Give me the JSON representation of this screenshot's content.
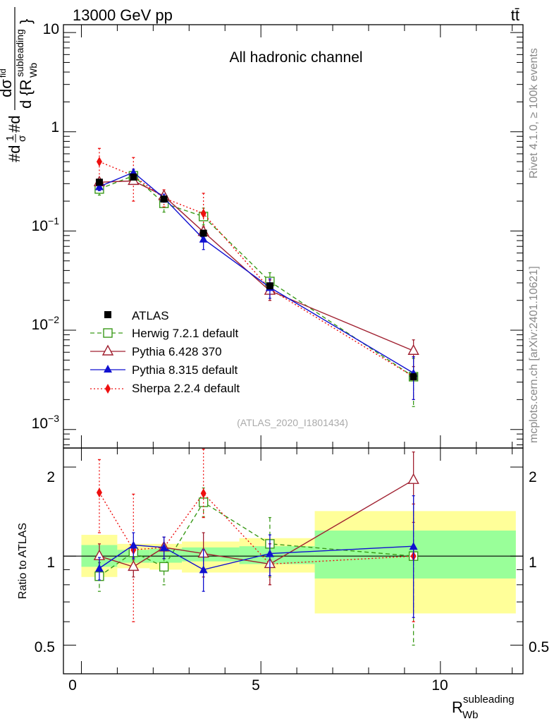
{
  "header": {
    "energy_label": "13000 GeV pp",
    "process_label": "tt̄"
  },
  "side_labels": {
    "rivet": "Rivet 4.1.0, ≥ 100k events",
    "site": "mcplots.cern.ch [arXiv:2401.10621]"
  },
  "chart_data": {
    "type": "line",
    "title": "All hadronic channel",
    "analysis_id": "(ATLAS_2020_I1801434)",
    "xlabel": "R_Wb^subleading",
    "xlabel_main": "R",
    "xlabel_sub": "Wb",
    "xlabel_sup": "subleading",
    "ylabel": "#d 1/σ #d dσ^fid / d{R_Wb^subleading}",
    "ratio_ylabel": "Ratio to ATLAS",
    "xlim": [
      -0.5,
      12.3
    ],
    "main_ylim": [
      0.00065,
      12
    ],
    "ratio_ylim": [
      0.4,
      2.32
    ],
    "x_ticks": [
      "0",
      "5",
      "10"
    ],
    "main_y_ticks": [
      "10",
      "1",
      "10^-1",
      "10^-2",
      "10^-3"
    ],
    "ratio_y_ticks": [
      "2",
      "1",
      "0.5"
    ],
    "bins": [
      [
        0,
        1
      ],
      [
        1,
        1.9
      ],
      [
        1.9,
        2.8
      ],
      [
        2.8,
        4.4
      ],
      [
        4.4,
        6.5
      ],
      [
        6.5,
        12.1
      ]
    ],
    "x": [
      0.5,
      1.45,
      2.3,
      3.4,
      5.25,
      9.25
    ],
    "data": {
      "name": "ATLAS",
      "values": [
        0.31,
        0.35,
        0.21,
        0.095,
        0.028,
        0.0034
      ],
      "band_inner": [
        [
          0.92,
          1.09
        ],
        [
          0.95,
          1.05
        ],
        [
          0.95,
          1.06
        ],
        [
          0.96,
          1.07
        ],
        [
          0.94,
          1.08
        ],
        [
          0.84,
          1.22
        ]
      ],
      "band_outer": [
        [
          0.85,
          1.18
        ],
        [
          0.91,
          1.1
        ],
        [
          0.9,
          1.1
        ],
        [
          0.88,
          1.12
        ],
        [
          0.88,
          1.15
        ],
        [
          0.64,
          1.42
        ]
      ]
    },
    "series": [
      {
        "name": "Herwig 7.2.1 default",
        "color": "#3a9a19",
        "marker": "open-square",
        "dash": "6,4",
        "values": [
          0.265,
          0.36,
          0.19,
          0.14,
          0.031,
          0.0034
        ],
        "err_lo": [
          0.23,
          0.33,
          0.155,
          0.115,
          0.025,
          0.0017
        ],
        "err_hi": [
          0.3,
          0.4,
          0.23,
          0.17,
          0.038,
          0.0052
        ],
        "ratio": [
          0.855,
          1.03,
          0.92,
          1.52,
          1.1,
          1.0
        ],
        "ratio_lo": [
          0.76,
          0.97,
          0.8,
          1.36,
          0.85,
          0.5
        ],
        "ratio_hi": [
          0.95,
          1.1,
          1.05,
          1.7,
          1.35,
          1.5
        ]
      },
      {
        "name": "Pythia 6.428 370",
        "color": "#a02030",
        "marker": "open-triangle",
        "dash": "",
        "values": [
          0.31,
          0.32,
          0.225,
          0.098,
          0.025,
          0.0062
        ],
        "err_lo": [
          0.29,
          0.3,
          0.21,
          0.085,
          0.02,
          0.0043
        ],
        "err_hi": [
          0.33,
          0.34,
          0.24,
          0.11,
          0.03,
          0.008
        ],
        "ratio": [
          1.0,
          0.92,
          1.07,
          1.02,
          0.94,
          1.81
        ],
        "ratio_lo": [
          0.9,
          0.85,
          0.98,
          0.85,
          0.8,
          1.3
        ],
        "ratio_hi": [
          1.1,
          0.99,
          1.16,
          1.2,
          1.1,
          2.25
        ]
      },
      {
        "name": "Pythia 8.315 default",
        "color": "#1010d0",
        "marker": "filled-triangle",
        "dash": "",
        "values": [
          0.28,
          0.39,
          0.215,
          0.083,
          0.027,
          0.0037
        ],
        "err_lo": [
          0.255,
          0.36,
          0.195,
          0.065,
          0.021,
          0.002
        ],
        "err_hi": [
          0.305,
          0.42,
          0.235,
          0.1,
          0.033,
          0.0054
        ],
        "ratio": [
          0.91,
          1.09,
          1.07,
          0.9,
          1.02,
          1.08
        ],
        "ratio_lo": [
          0.83,
          0.98,
          0.98,
          0.76,
          0.86,
          0.62
        ],
        "ratio_hi": [
          0.99,
          1.2,
          1.16,
          1.05,
          1.18,
          1.6
        ]
      },
      {
        "name": "Sherpa 2.2.4 default",
        "color": "#ee1010",
        "marker": "filled-diamond",
        "dash": "2,3",
        "values": [
          0.5,
          0.36,
          0.215,
          0.15,
          0.026,
          0.0034
        ],
        "err_lo": [
          0.34,
          0.2,
          0.175,
          0.11,
          0.02,
          0.002
        ],
        "err_hi": [
          0.68,
          0.55,
          0.26,
          0.24,
          0.032,
          0.0054
        ],
        "ratio": [
          1.64,
          1.05,
          1.07,
          1.63,
          0.94,
          1.0
        ],
        "ratio_lo": [
          1.2,
          0.6,
          0.98,
          1.35,
          0.8,
          0.6
        ],
        "ratio_hi": [
          2.12,
          1.62,
          1.16,
          2.3,
          1.1,
          1.5
        ]
      }
    ]
  }
}
